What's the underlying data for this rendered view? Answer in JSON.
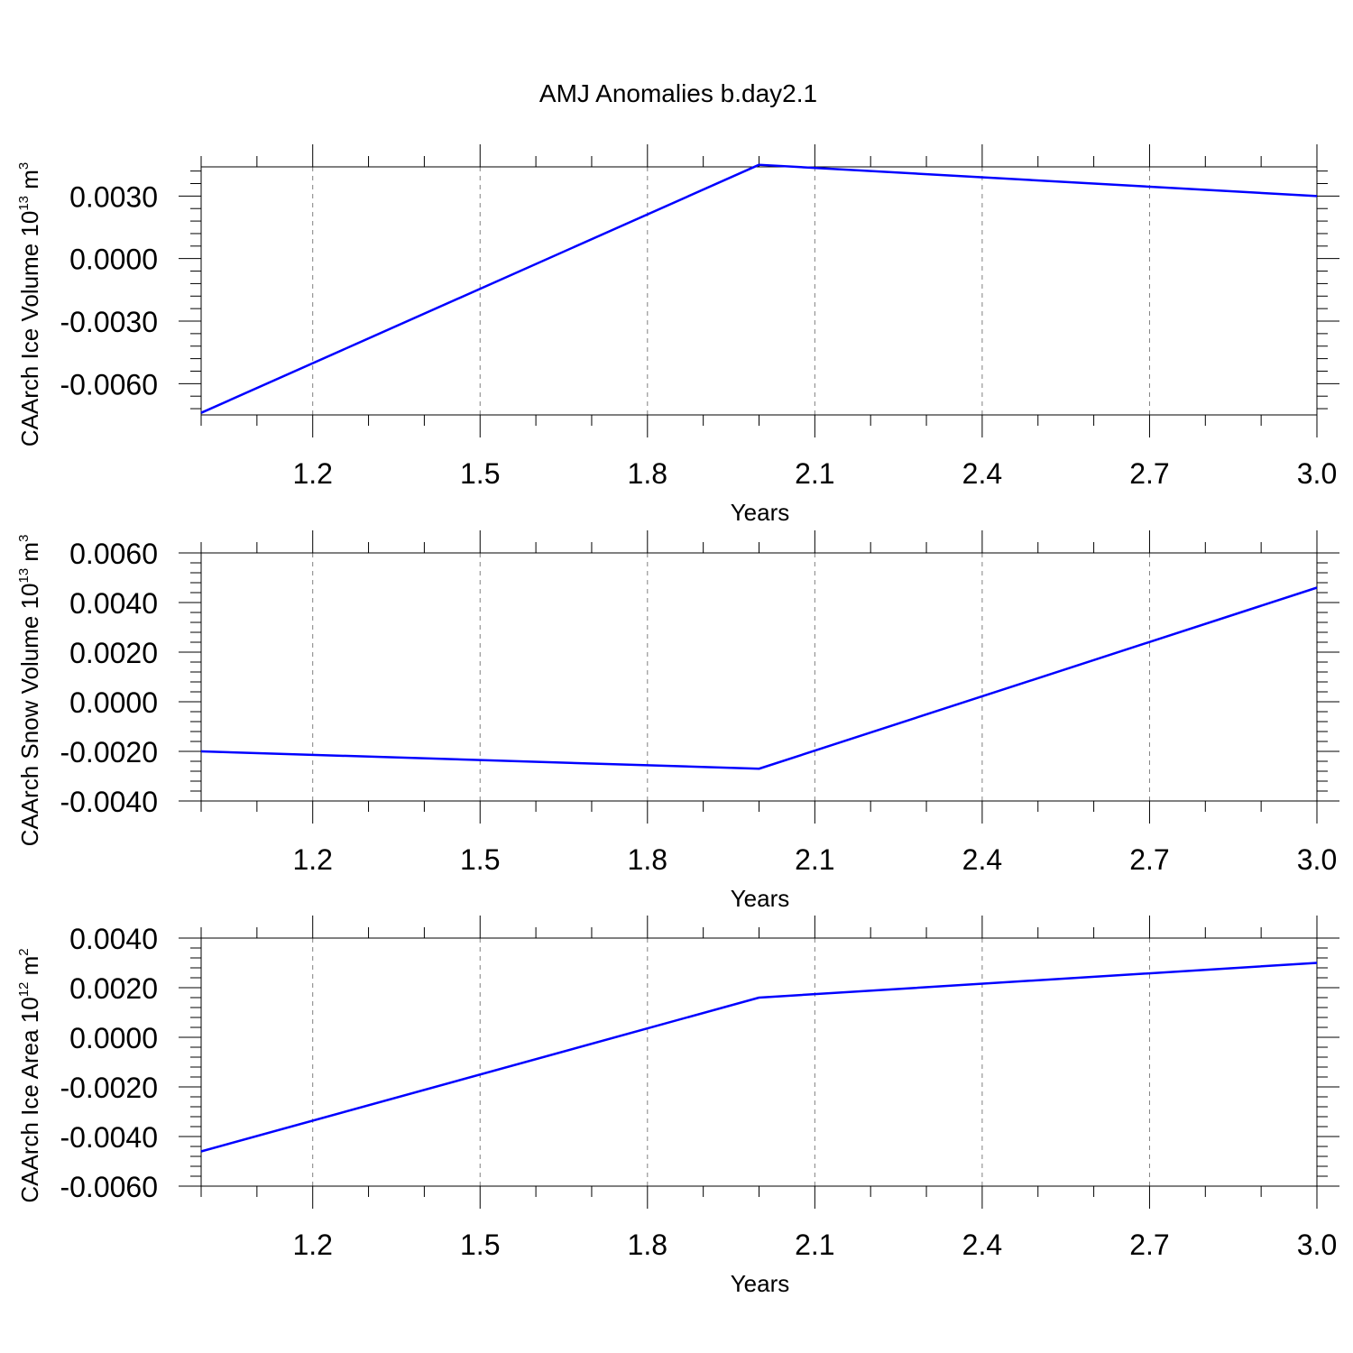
{
  "title": "AMJ Anomalies b.day2.1",
  "colors": {
    "series": "#0000ff",
    "grid": "#808080",
    "axis": "#000000"
  },
  "chart_data": [
    {
      "type": "line",
      "x": [
        1,
        2,
        3
      ],
      "xlim": [
        1.0,
        3.0
      ],
      "xticks": [
        "1.2",
        "1.5",
        "1.8",
        "2.1",
        "2.4",
        "2.7",
        "3.0"
      ],
      "xlabel": "Years",
      "ylabel_main": "CAArch Ice Volume 10",
      "ylabel_exp": "13",
      "ylabel_unit": " m",
      "ylabel_unit_exp": "3",
      "ylim": [
        -0.0075,
        0.0044
      ],
      "yticks": [
        "0.0030",
        "0.0000",
        "-0.0030",
        "-0.0060"
      ],
      "series": [
        {
          "values": [
            -0.0074,
            0.0045,
            0.003
          ]
        }
      ],
      "grid": "vertical dashed"
    },
    {
      "type": "line",
      "x": [
        1,
        2,
        3
      ],
      "xlim": [
        1.0,
        3.0
      ],
      "xticks": [
        "1.2",
        "1.5",
        "1.8",
        "2.1",
        "2.4",
        "2.7",
        "3.0"
      ],
      "xlabel": "Years",
      "ylabel_main": "CAArch Snow Volume 10",
      "ylabel_exp": "13",
      "ylabel_unit": " m",
      "ylabel_unit_exp": "3",
      "ylim": [
        -0.004,
        0.006
      ],
      "yticks": [
        "0.0060",
        "0.0040",
        "0.0020",
        "0.0000",
        "-0.0020",
        "-0.0040"
      ],
      "series": [
        {
          "values": [
            -0.002,
            -0.0027,
            0.0046
          ]
        }
      ],
      "grid": "vertical dashed"
    },
    {
      "type": "line",
      "x": [
        1,
        2,
        3
      ],
      "xlim": [
        1.0,
        3.0
      ],
      "xticks": [
        "1.2",
        "1.5",
        "1.8",
        "2.1",
        "2.4",
        "2.7",
        "3.0"
      ],
      "xlabel": "Years",
      "ylabel_main": "CAArch Ice Area 10",
      "ylabel_exp": "12",
      "ylabel_unit": " m",
      "ylabel_unit_exp": "2",
      "ylim": [
        -0.006,
        0.004
      ],
      "yticks": [
        "0.0040",
        "0.0020",
        "0.0000",
        "-0.0020",
        "-0.0040",
        "-0.0060"
      ],
      "series": [
        {
          "values": [
            -0.0046,
            0.0016,
            0.003
          ]
        }
      ],
      "grid": "vertical dashed"
    }
  ]
}
